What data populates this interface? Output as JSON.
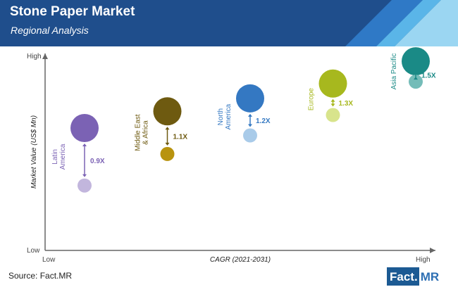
{
  "header": {
    "title": "Stone Paper Market",
    "subtitle": "Regional Analysis",
    "bg_color": "#1f4e8c"
  },
  "chart_data": {
    "type": "scatter",
    "title": "Stone Paper Market",
    "subtitle": "Regional Analysis",
    "xlabel": "CAGR (2021-2031)",
    "ylabel": "Market Value (US$ Mn)",
    "x_ticks": [
      "Low",
      "High"
    ],
    "y_ticks": [
      "Low",
      "High"
    ],
    "series": [
      {
        "label": "Latin America",
        "lines": [
          "Latin",
          "America"
        ],
        "multiplier": "0.9X",
        "color": "#7b62b4",
        "light": "#c2b6dd",
        "x": 1,
        "big_y": 6.6,
        "small_y": 3.5
      },
      {
        "label": "Middle East & Africa",
        "lines": [
          "Middle East",
          "& Africa"
        ],
        "multiplier": "1.1X",
        "color": "#6e5a10",
        "light": "#b8930f",
        "x": 2,
        "big_y": 7.5,
        "small_y": 5.2
      },
      {
        "label": "North America",
        "lines": [
          "North",
          "America"
        ],
        "multiplier": "1.2X",
        "color": "#3478c2",
        "light": "#a9cbe9",
        "x": 3,
        "big_y": 8.2,
        "small_y": 6.2
      },
      {
        "label": "Europe",
        "lines": [
          "Europe"
        ],
        "multiplier": "1.3X",
        "color": "#a7b81e",
        "light": "#d8e48c",
        "x": 4,
        "big_y": 9.0,
        "small_y": 7.3
      },
      {
        "label": "Asia Pacific",
        "lines": [
          "Asia Pacific"
        ],
        "multiplier": "1.5X",
        "color": "#1a8a86",
        "light": "#74bcb8",
        "x": 5,
        "big_y": 10.2,
        "small_y": 9.1
      }
    ]
  },
  "footer": {
    "source": "Source: Fact.MR",
    "brand_main": "Fact.",
    "brand_suffix": "MR"
  }
}
